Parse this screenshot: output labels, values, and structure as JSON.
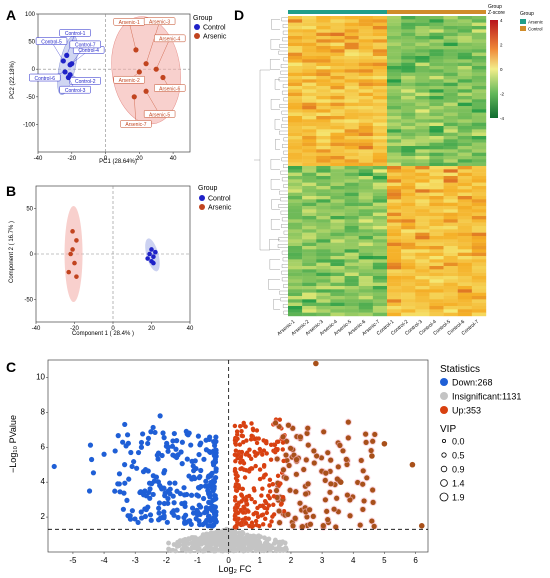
{
  "panel_labels": {
    "a": "A",
    "b": "B",
    "c": "C",
    "d": "D"
  },
  "colors": {
    "arsenic": "#c1441f",
    "control": "#1f22c8",
    "arsenic_ellipse": "#f4b0ac",
    "control_ellipse": "#aab4e8",
    "down": "#1f5fd6",
    "up": "#d8400f",
    "up_far": "#a8501a",
    "insignificant": "#c4c4c4",
    "halo": "#f6b7c4",
    "group_arsenic_bar": "#1f9e89",
    "group_control_bar": "#d08c2a"
  },
  "chart_data": [
    {
      "panel": "A",
      "type": "scatter",
      "xlabel": "PC1 (28.64%)",
      "ylabel": "PC2 (22.18%)",
      "xlim": [
        -40,
        50
      ],
      "ylim": [
        -150,
        100
      ],
      "xticks": [
        -40,
        -20,
        0,
        20,
        40
      ],
      "yticks": [
        -100,
        -50,
        0,
        50,
        100
      ],
      "legend_title": "Group",
      "series": [
        {
          "name": "Control",
          "points": [
            {
              "label": "Control-1",
              "x": -23,
              "y": 25
            },
            {
              "label": "Control-2",
              "x": -21,
              "y": -10
            },
            {
              "label": "Control-3",
              "x": -22,
              "y": -15
            },
            {
              "label": "Control-4",
              "x": -21,
              "y": 8
            },
            {
              "label": "Control-5",
              "x": -25,
              "y": 15
            },
            {
              "label": "Control-6",
              "x": -24,
              "y": -5
            },
            {
              "label": "Control-7",
              "x": -20,
              "y": 10
            }
          ]
        },
        {
          "name": "Arsenic",
          "points": [
            {
              "label": "Arsenic-1",
              "x": 18,
              "y": 35
            },
            {
              "label": "Arsenic-2",
              "x": 20,
              "y": -5
            },
            {
              "label": "Arsenic-3",
              "x": 24,
              "y": 10
            },
            {
              "label": "Arsenic-4",
              "x": 30,
              "y": 0
            },
            {
              "label": "Arsenic-5",
              "x": 24,
              "y": -40
            },
            {
              "label": "Arsenic-6",
              "x": 34,
              "y": -15
            },
            {
              "label": "Arsenic-7",
              "x": 17,
              "y": -50
            }
          ]
        }
      ]
    },
    {
      "panel": "B",
      "type": "scatter",
      "xlabel": "Component 1 ( 28.4% )",
      "ylabel": "Component 2 ( 16.7% )",
      "xlim": [
        -40,
        40
      ],
      "ylim": [
        -75,
        75
      ],
      "xticks": [
        -40,
        -20,
        0,
        20,
        40
      ],
      "yticks": [
        -50,
        0,
        50
      ],
      "legend_title": "Group",
      "series": [
        {
          "name": "Control",
          "points": [
            {
              "x": 20,
              "y": 5
            },
            {
              "x": 19,
              "y": 0
            },
            {
              "x": 21,
              "y": -3
            },
            {
              "x": 20,
              "y": -8
            },
            {
              "x": 22,
              "y": 2
            },
            {
              "x": 18,
              "y": -5
            },
            {
              "x": 21,
              "y": -10
            }
          ]
        },
        {
          "name": "Arsenic",
          "points": [
            {
              "x": -21,
              "y": 25
            },
            {
              "x": -19,
              "y": 15
            },
            {
              "x": -22,
              "y": 0
            },
            {
              "x": -20,
              "y": -10
            },
            {
              "x": -23,
              "y": -20
            },
            {
              "x": -19,
              "y": -25
            },
            {
              "x": -21,
              "y": 5
            }
          ]
        }
      ]
    },
    {
      "panel": "C",
      "type": "scatter",
      "xlabel": "Log₂ FC",
      "ylabel": "−Log₁₀ PValue",
      "xlim": [
        -5.8,
        6.4
      ],
      "ylim": [
        0,
        11
      ],
      "xticks": [
        -5,
        -4,
        -3,
        -2,
        -1,
        0,
        1,
        2,
        3,
        4,
        5,
        6
      ],
      "yticks": [
        2,
        4,
        6,
        8,
        10
      ],
      "thresholds": {
        "x": 0,
        "y": 1.3
      },
      "legend_title": "Statistics",
      "legend": [
        {
          "key": "down",
          "label": "Down:268"
        },
        {
          "key": "insignificant",
          "label": "Insignificant:1131"
        },
        {
          "key": "up",
          "label": "Up:353"
        }
      ],
      "vip_title": "VIP",
      "vip_levels": [
        "0.0",
        "0.5",
        "0.9",
        "1.4",
        "1.9"
      ],
      "counts": {
        "down": 268,
        "insignificant": 1131,
        "up": 353
      }
    },
    {
      "panel": "D",
      "type": "heatmap",
      "legend_title": "Group",
      "zscore_title": "Group\nZ-score",
      "group_labels": [
        "Arsenic",
        "Control"
      ],
      "scale_ticks": [
        "4",
        "2",
        "0",
        "-2",
        "-4"
      ],
      "columns": [
        "Arsenic-1",
        "Arsenic-2",
        "Arsenic-3",
        "Arsenic-4",
        "Arsenic-5",
        "Arsenic-6",
        "Arsenic-7",
        "Control-1",
        "Control-2",
        "Control-3",
        "Control-4",
        "Control-5",
        "Control-6",
        "Control-7"
      ]
    }
  ]
}
